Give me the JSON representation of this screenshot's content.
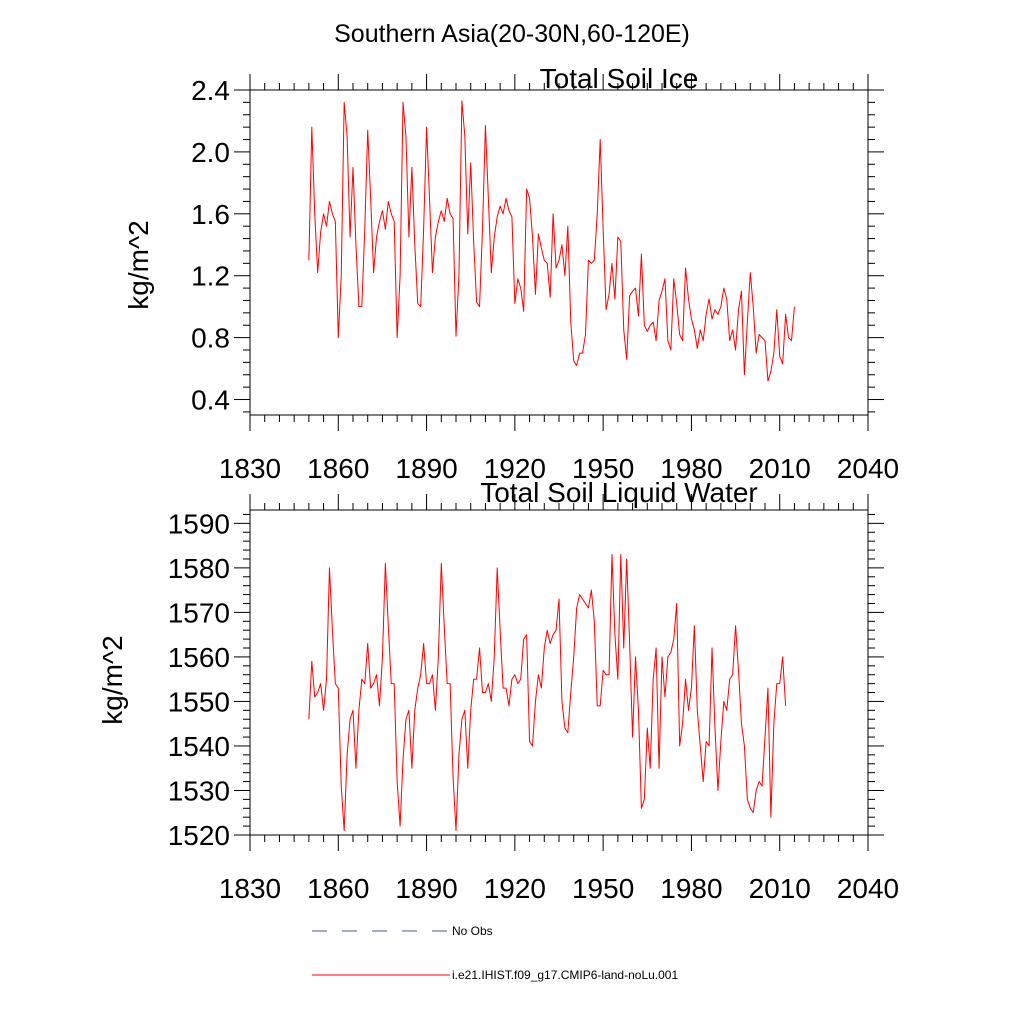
{
  "figure_title": "Southern Asia(20-30N,60-120E)",
  "legend": [
    {
      "label": "No Obs",
      "color": "#4a5a9a",
      "dash": true
    },
    {
      "label": "i.e21.IHIST.f09_g17.CMIP6-land-noLu.001",
      "color": "#ff0000",
      "dash": false
    }
  ],
  "chart_data": [
    {
      "type": "line",
      "title": "Total Soil Ice",
      "xlabel": "",
      "ylabel": "kg/m^2",
      "xlim": [
        1830,
        2040
      ],
      "ylim": [
        0.3,
        2.4
      ],
      "xticks": [
        1830,
        1860,
        1890,
        1920,
        1950,
        1980,
        2010,
        2040
      ],
      "xtick_labels": [
        "1830",
        "1860",
        "1890",
        "1920",
        "1950",
        "1980",
        "2010",
        "2040"
      ],
      "yticks": [
        0.4,
        0.8,
        1.2,
        1.6,
        2.0,
        2.4
      ],
      "ytick_labels": [
        "0.4",
        "0.8",
        "1.2",
        "1.6",
        "2.0",
        "2.4"
      ],
      "grid": false,
      "series": [
        {
          "name": "i.e21.IHIST.f09_g17.CMIP6-land-noLu.001",
          "color": "#ff0000",
          "x_start": 1850,
          "values": [
            1.3,
            2.16,
            1.6,
            1.22,
            1.48,
            1.6,
            1.52,
            1.68,
            1.6,
            1.55,
            0.8,
            1.2,
            2.32,
            2.1,
            1.45,
            1.9,
            1.4,
            1.0,
            1.0,
            1.5,
            2.14,
            1.7,
            1.22,
            1.45,
            1.55,
            1.62,
            1.5,
            1.68,
            1.6,
            1.55,
            0.8,
            1.2,
            2.32,
            2.1,
            1.45,
            1.9,
            1.4,
            1.02,
            1.0,
            1.5,
            2.16,
            1.7,
            1.22,
            1.45,
            1.55,
            1.62,
            1.55,
            1.7,
            1.6,
            1.57,
            0.81,
            1.2,
            2.33,
            2.1,
            1.47,
            1.93,
            1.42,
            1.03,
            1.0,
            1.5,
            2.17,
            1.7,
            1.22,
            1.45,
            1.58,
            1.65,
            1.6,
            1.7,
            1.62,
            1.58,
            1.02,
            1.18,
            1.12,
            0.97,
            1.76,
            1.7,
            1.45,
            1.08,
            1.47,
            1.38,
            1.3,
            1.28,
            1.06,
            1.6,
            1.25,
            1.3,
            1.4,
            1.2,
            1.52,
            0.9,
            0.65,
            0.62,
            0.7,
            0.7,
            0.82,
            1.3,
            1.28,
            1.3,
            1.6,
            2.08,
            1.5,
            0.98,
            1.08,
            1.28,
            1.05,
            1.45,
            1.42,
            0.85,
            0.66,
            1.07,
            1.1,
            1.12,
            0.94,
            1.34,
            0.88,
            0.84,
            0.88,
            0.9,
            0.78,
            1.04,
            1.1,
            1.18,
            0.78,
            0.72,
            1.18,
            1.02,
            0.82,
            0.78,
            1.25,
            1.05,
            0.92,
            0.85,
            0.73,
            0.85,
            0.78,
            0.95,
            1.05,
            0.92,
            0.98,
            0.95,
            1.0,
            1.12,
            1.05,
            0.78,
            0.85,
            0.72,
            0.98,
            1.1,
            0.56,
            0.9,
            1.22,
            1.0,
            0.7,
            0.82,
            0.8,
            0.78,
            0.52,
            0.58,
            0.7,
            0.98,
            0.68,
            0.63,
            0.95,
            0.8,
            0.78,
            1.0
          ]
        }
      ]
    },
    {
      "type": "line",
      "title": "Total Soil Liquid Water",
      "xlabel": "",
      "ylabel": "kg/m^2",
      "xlim": [
        1830,
        2040
      ],
      "ylim": [
        1520,
        1593
      ],
      "xticks": [
        1830,
        1860,
        1890,
        1920,
        1950,
        1980,
        2010,
        2040
      ],
      "xtick_labels": [
        "1830",
        "1860",
        "1890",
        "1920",
        "1950",
        "1980",
        "2010",
        "2040"
      ],
      "yticks": [
        1520,
        1530,
        1540,
        1550,
        1560,
        1570,
        1580,
        1590
      ],
      "ytick_labels": [
        "1520",
        "1530",
        "1540",
        "1550",
        "1560",
        "1570",
        "1580",
        "1590"
      ],
      "grid": false,
      "series": [
        {
          "name": "i.e21.IHIST.f09_g17.CMIP6-land-noLu.001",
          "color": "#ff0000",
          "x_start": 1850,
          "values": [
            1546,
            1559,
            1551,
            1552,
            1554,
            1548,
            1555,
            1580,
            1566,
            1554,
            1553,
            1531,
            1521,
            1538,
            1546,
            1548,
            1535,
            1548,
            1555,
            1554,
            1563,
            1553,
            1554,
            1556,
            1549,
            1560,
            1581,
            1567,
            1554,
            1554,
            1532,
            1522,
            1537,
            1546,
            1548,
            1535,
            1548,
            1553,
            1556,
            1563,
            1554,
            1554,
            1556,
            1548,
            1560,
            1581,
            1567,
            1554,
            1554,
            1533,
            1521,
            1538,
            1546,
            1548,
            1535,
            1548,
            1555,
            1555,
            1562,
            1552,
            1552,
            1554,
            1550,
            1560,
            1580,
            1566,
            1553,
            1553,
            1549,
            1555,
            1556,
            1554,
            1555,
            1564,
            1565,
            1541,
            1540,
            1550,
            1556,
            1553,
            1562,
            1566,
            1563,
            1565,
            1566,
            1573,
            1550,
            1544,
            1543,
            1552,
            1560,
            1571,
            1574,
            1573,
            1572,
            1571,
            1575,
            1568,
            1549,
            1549,
            1557,
            1556,
            1556,
            1583,
            1565,
            1555,
            1583,
            1562,
            1582,
            1563,
            1542,
            1560,
            1548,
            1526,
            1528,
            1544,
            1535,
            1555,
            1562,
            1535,
            1560,
            1551,
            1560,
            1561,
            1564,
            1572,
            1540,
            1545,
            1555,
            1548,
            1553,
            1567,
            1548,
            1540,
            1532,
            1541,
            1540,
            1562,
            1544,
            1530,
            1541,
            1550,
            1548,
            1555,
            1556,
            1567,
            1557,
            1545,
            1540,
            1528,
            1526,
            1525,
            1530,
            1532,
            1531,
            1542,
            1553,
            1524,
            1545,
            1554,
            1554,
            1560,
            1549
          ]
        }
      ]
    }
  ]
}
